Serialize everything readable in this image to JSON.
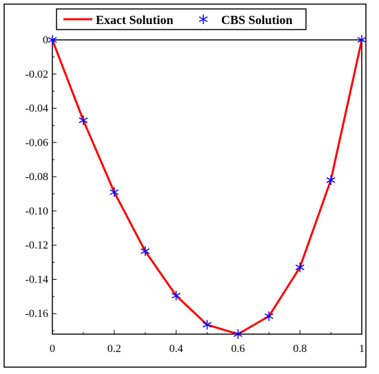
{
  "chart_data": {
    "type": "line",
    "xlim": [
      0,
      1
    ],
    "ylim": [
      -0.172,
      0
    ],
    "x_ticks": [
      {
        "value": 0,
        "label": "0"
      },
      {
        "value": 0.2,
        "label": "0.2"
      },
      {
        "value": 0.4,
        "label": "0.4"
      },
      {
        "value": 0.6,
        "label": "0.6"
      },
      {
        "value": 0.8,
        "label": "0.8"
      },
      {
        "value": 1,
        "label": "1"
      }
    ],
    "y_ticks": [
      {
        "value": 0,
        "label": "0"
      },
      {
        "value": -0.02,
        "label": "-0.02"
      },
      {
        "value": -0.04,
        "label": "-0.04"
      },
      {
        "value": -0.06,
        "label": "-0.06"
      },
      {
        "value": -0.08,
        "label": "-0.08"
      },
      {
        "value": -0.1,
        "label": "-0.10"
      },
      {
        "value": -0.12,
        "label": "-0.12"
      },
      {
        "value": -0.14,
        "label": "-0.14"
      },
      {
        "value": -0.16,
        "label": "-0.16"
      }
    ],
    "legend_position": "top",
    "grid": false,
    "series": [
      {
        "name": "Exact Solution",
        "style": "line",
        "color": "#ff0000",
        "x": [
          0,
          0.1,
          0.2,
          0.3,
          0.4,
          0.5,
          0.6,
          0.7,
          0.8,
          0.9,
          1.0
        ],
        "y": [
          0,
          -0.047,
          -0.089,
          -0.1235,
          -0.1495,
          -0.1665,
          -0.172,
          -0.1615,
          -0.133,
          -0.082,
          0
        ]
      },
      {
        "name": "CBS Solution",
        "style": "marker",
        "marker": "asterisk",
        "color": "#0000ff",
        "x": [
          0,
          0.1,
          0.2,
          0.3,
          0.4,
          0.5,
          0.6,
          0.7,
          0.8,
          0.9,
          1.0
        ],
        "y": [
          0,
          -0.047,
          -0.089,
          -0.1235,
          -0.1495,
          -0.1665,
          -0.172,
          -0.1615,
          -0.133,
          -0.082,
          0
        ]
      }
    ]
  }
}
